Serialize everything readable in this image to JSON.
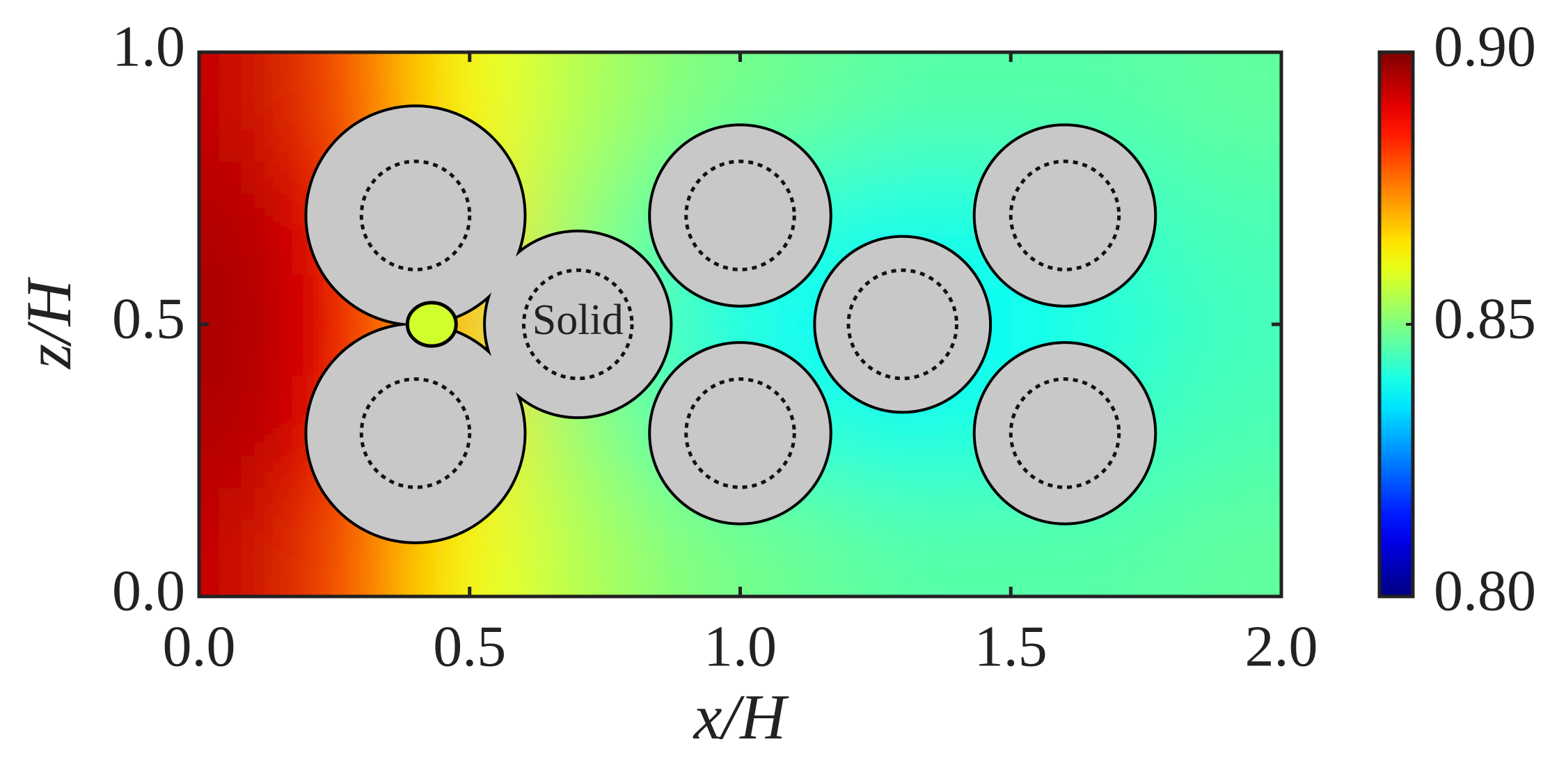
{
  "chart_data": {
    "type": "contour",
    "xlabel": "x/H",
    "ylabel": "z/H",
    "xlim": [
      0,
      2
    ],
    "ylim": [
      0,
      1
    ],
    "xticks": [
      {
        "value": 0,
        "label": "0.0"
      },
      0.5,
      {
        "value": 1,
        "label": "1.0"
      },
      1.5,
      {
        "value": 2,
        "label": "2.0"
      }
    ],
    "yticks": [
      {
        "value": 0,
        "label": "0.0"
      },
      0.5,
      {
        "value": 1,
        "label": "1.0"
      }
    ],
    "clim": [
      0.8,
      0.9
    ],
    "cticks": [
      {
        "value": 0.8,
        "label": "0.80"
      },
      0.85,
      {
        "value": 0.9,
        "label": "0.90"
      }
    ],
    "colormap": "jet",
    "x": [
      0.1,
      0.3,
      0.5,
      0.7,
      0.9,
      1.1,
      1.3,
      1.5,
      1.7,
      1.9
    ],
    "z": [
      0.1,
      0.3,
      0.5,
      0.7,
      0.9
    ],
    "field": [
      [
        0.893,
        0.88,
        0.862,
        0.855,
        0.85,
        0.848,
        0.846,
        0.846,
        0.846,
        0.847
      ],
      [
        0.895,
        0.886,
        0.865,
        0.852,
        0.845,
        0.842,
        0.84,
        0.841,
        0.843,
        0.845
      ],
      [
        0.896,
        0.888,
        0.868,
        0.85,
        0.842,
        0.838,
        0.836,
        0.838,
        0.841,
        0.844
      ],
      [
        0.895,
        0.886,
        0.865,
        0.852,
        0.845,
        0.842,
        0.84,
        0.841,
        0.843,
        0.845
      ],
      [
        0.893,
        0.88,
        0.862,
        0.855,
        0.85,
        0.848,
        0.846,
        0.846,
        0.846,
        0.847
      ]
    ],
    "solids": [
      {
        "x": 0.4,
        "z": 0.7,
        "r": 0.2
      },
      {
        "x": 0.4,
        "z": 0.3,
        "r": 0.2
      },
      {
        "x": 0.7,
        "z": 0.5,
        "r": 0.17
      },
      {
        "x": 1.0,
        "z": 0.7,
        "r": 0.165
      },
      {
        "x": 1.0,
        "z": 0.3,
        "r": 0.165
      },
      {
        "x": 1.3,
        "z": 0.5,
        "r": 0.16
      },
      {
        "x": 1.6,
        "z": 0.7,
        "r": 0.165
      },
      {
        "x": 1.6,
        "z": 0.3,
        "r": 0.165
      }
    ],
    "inner_r": 0.1,
    "annotation": "Solid"
  }
}
